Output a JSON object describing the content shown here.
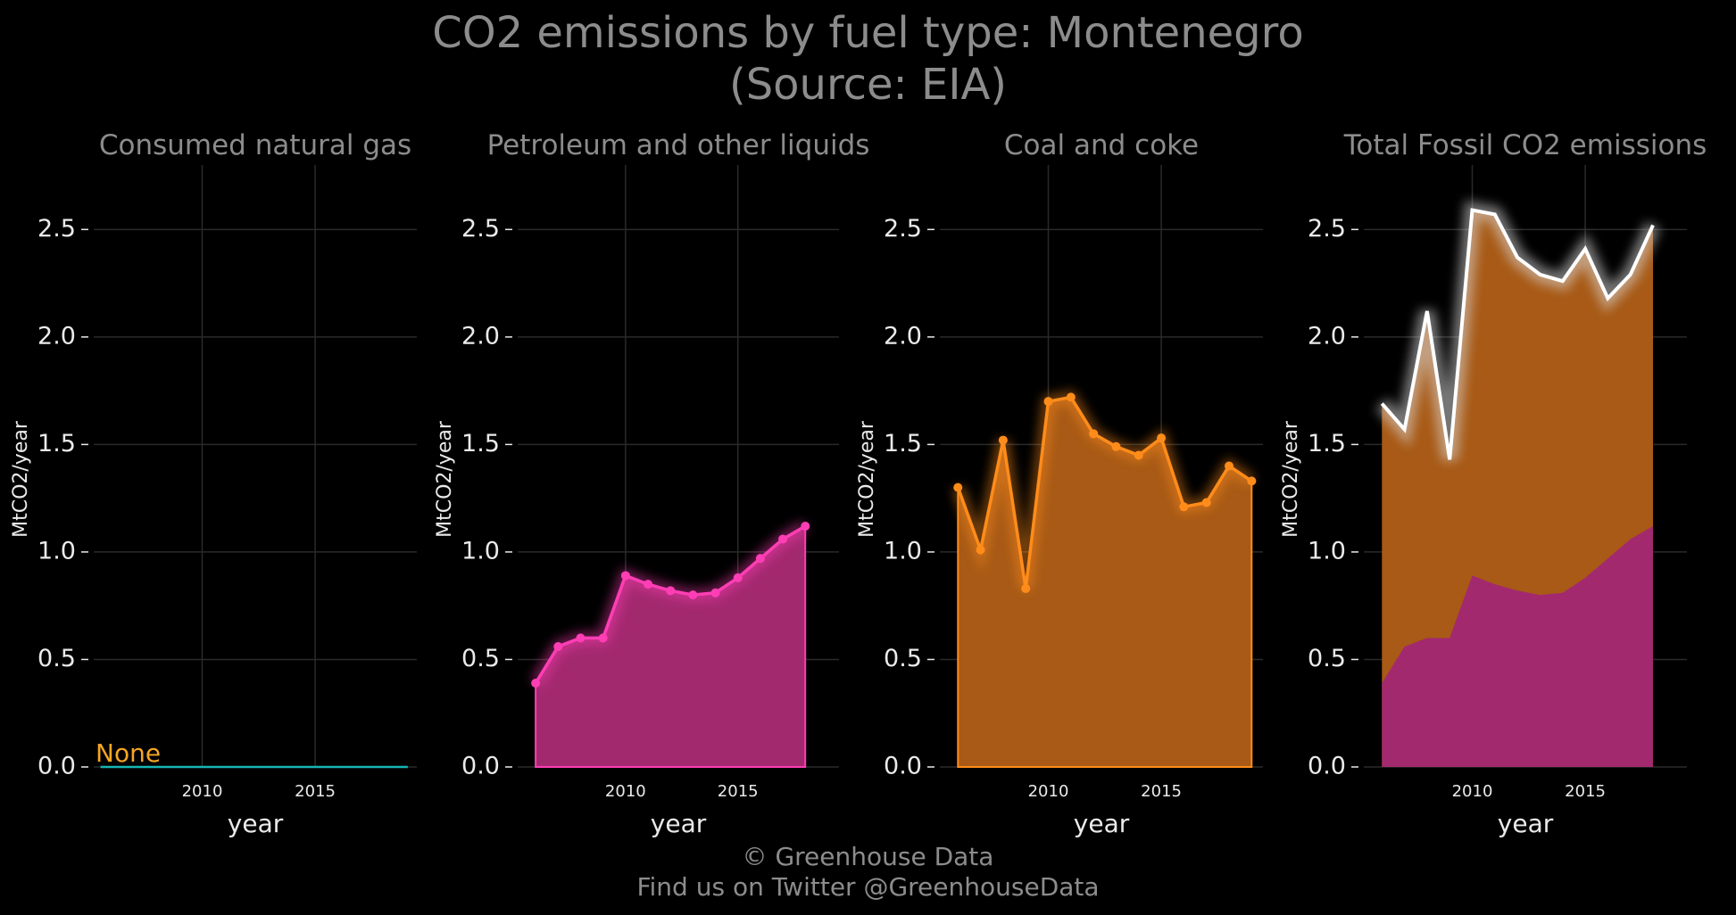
{
  "title_line1": "CO2 emissions by fuel type: Montenegro",
  "title_line2": "(Source: EIA)",
  "footer_line1": "© Greenhouse Data",
  "footer_line2": "Find us on Twitter @GreenhouseData",
  "colors": {
    "background": "#000000",
    "grid": "#2a2a2a",
    "natural_gas": "#17b5b5",
    "none_label": "#f5a623",
    "petroleum": "#ff3eb5",
    "petroleum_fill": "#a3296f",
    "coal": "#ff8c1a",
    "coal_fill": "#a85a16",
    "total_line": "#ffffff"
  },
  "chart_data": [
    {
      "type": "line",
      "title": "Consumed natural gas",
      "xlabel": "year",
      "ylabel": "MtCO2/year",
      "xlim": [
        2005.2,
        2019.5
      ],
      "ylim": [
        0,
        2.8
      ],
      "xticks": [
        "2010",
        "2015"
      ],
      "yticks": [
        "0.0",
        "0.5",
        "1.0",
        "1.5",
        "2.0",
        "2.5"
      ],
      "grid": true,
      "annotation": "None",
      "series": [
        {
          "x": [
            2005.5,
            2019.1
          ],
          "values": [
            0,
            0
          ]
        }
      ]
    },
    {
      "type": "area",
      "title": "Petroleum and other liquids",
      "xlabel": "year",
      "ylabel": "MtCO2/year",
      "xlim": [
        2005.2,
        2019.5
      ],
      "ylim": [
        0,
        2.8
      ],
      "xticks": [
        "2010",
        "2015"
      ],
      "yticks": [
        "0.0",
        "0.5",
        "1.0",
        "1.5",
        "2.0",
        "2.5"
      ],
      "grid": true,
      "series": [
        {
          "x": [
            2006,
            2007,
            2008,
            2009,
            2010,
            2011,
            2012,
            2013,
            2014,
            2015,
            2016,
            2017,
            2018
          ],
          "values": [
            0.39,
            0.56,
            0.6,
            0.6,
            0.89,
            0.85,
            0.82,
            0.8,
            0.81,
            0.88,
            0.97,
            1.06,
            1.12
          ]
        }
      ]
    },
    {
      "type": "area",
      "title": "Coal and coke",
      "xlabel": "year",
      "ylabel": "MtCO2/year",
      "xlim": [
        2005.2,
        2019.5
      ],
      "ylim": [
        0,
        2.8
      ],
      "xticks": [
        "2010",
        "2015"
      ],
      "yticks": [
        "0.0",
        "0.5",
        "1.0",
        "1.5",
        "2.0",
        "2.5"
      ],
      "grid": true,
      "series": [
        {
          "x": [
            2006,
            2007,
            2008,
            2009,
            2010,
            2011,
            2012,
            2013,
            2014,
            2015,
            2016,
            2017,
            2018,
            2019
          ],
          "values": [
            1.3,
            1.01,
            1.52,
            0.83,
            1.7,
            1.72,
            1.55,
            1.49,
            1.45,
            1.53,
            1.21,
            1.23,
            1.4,
            1.33
          ]
        }
      ]
    },
    {
      "type": "area",
      "title": "Total Fossil CO2 emissions",
      "xlabel": "year",
      "ylabel": "MtCO2/year",
      "xlim": [
        2005.2,
        2019.5
      ],
      "ylim": [
        0,
        2.8
      ],
      "xticks": [
        "2010",
        "2015"
      ],
      "yticks": [
        "0.0",
        "0.5",
        "1.0",
        "1.5",
        "2.0",
        "2.5"
      ],
      "grid": true,
      "series": [
        {
          "x": [
            2006,
            2007,
            2008,
            2009,
            2010,
            2011,
            2012,
            2013,
            2014,
            2015,
            2016,
            2017,
            2018
          ],
          "values": [
            0.39,
            0.56,
            0.6,
            0.6,
            0.89,
            0.85,
            0.82,
            0.8,
            0.81,
            0.88,
            0.97,
            1.06,
            1.12
          ]
        },
        {
          "x": [
            2006,
            2007,
            2008,
            2009,
            2010,
            2011,
            2012,
            2013,
            2014,
            2015,
            2016,
            2017,
            2018
          ],
          "values": [
            1.69,
            1.57,
            2.12,
            1.43,
            2.59,
            2.57,
            2.37,
            2.29,
            2.26,
            2.41,
            2.18,
            2.29,
            2.52
          ]
        }
      ]
    }
  ]
}
